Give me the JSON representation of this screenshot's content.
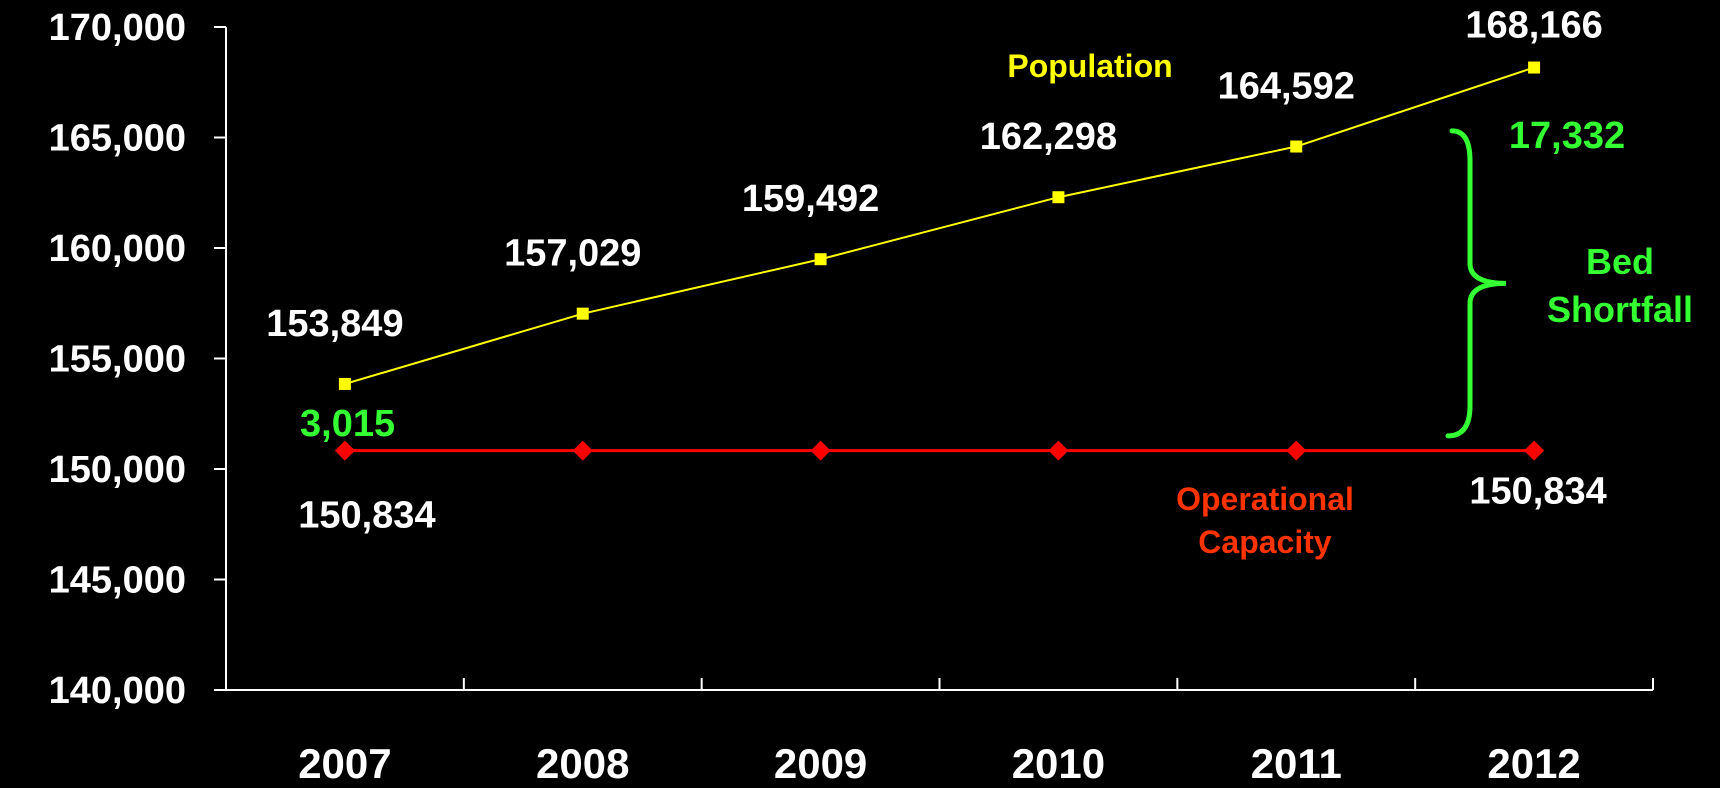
{
  "chart_data": {
    "type": "line",
    "title": "",
    "xlabel": "",
    "ylabel": "",
    "categories": [
      "2007",
      "2008",
      "2009",
      "2010",
      "2011",
      "2012"
    ],
    "ylim": [
      140000,
      170000
    ],
    "y_ticks": [
      "140,000",
      "145,000",
      "150,000",
      "155,000",
      "160,000",
      "165,000",
      "170,000"
    ],
    "grid": false,
    "series": [
      {
        "name": "Population",
        "values": [
          153849,
          157029,
          159492,
          162298,
          164592,
          168166
        ],
        "labels": [
          "153,849",
          "157,029",
          "159,492",
          "162,298",
          "164,592",
          "168,166"
        ],
        "color": "#ffff00",
        "marker": "square"
      },
      {
        "name": "Operational Capacity",
        "label_lines": [
          "Operational",
          "Capacity"
        ],
        "values": [
          150834,
          150834,
          150834,
          150834,
          150834,
          150834
        ],
        "labels": [
          "150,834",
          "",
          "",
          "",
          "",
          "150,834"
        ],
        "color": "#ff0000",
        "label_color": "#ff3300",
        "marker": "diamond"
      }
    ],
    "annotations": {
      "gap_2007": "3,015",
      "gap_2012": "17,332",
      "shortfall_lines": [
        "Bed",
        "Shortfall"
      ],
      "color": "#33ff33"
    }
  }
}
